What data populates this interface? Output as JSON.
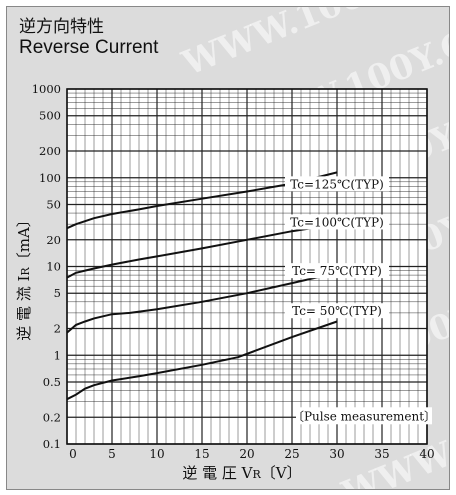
{
  "title_jp": "逆方向特性",
  "title_en": "Reverse Current",
  "watermark": "WWW.100Y.COM.TW",
  "chart_data": {
    "type": "line",
    "x_label_jp": "逆 電 圧",
    "x_label_sym": "V",
    "x_label_sub": "R",
    "x_label_unit": "〔V〕",
    "y_label_jp": "逆 電 流",
    "y_label_sym": "I",
    "y_label_sub": "R",
    "y_label_unit": "〔mA〕",
    "xlim": [
      0,
      40
    ],
    "ylim": [
      0.1,
      1000
    ],
    "y_scale": "log",
    "grid": true,
    "x_ticks": [
      0,
      5,
      10,
      15,
      20,
      25,
      30,
      35,
      40
    ],
    "y_ticks": [
      0.1,
      0.2,
      0.5,
      1,
      2,
      5,
      10,
      20,
      50,
      100,
      200,
      500,
      1000
    ],
    "y_tick_labels": [
      "0.1",
      "0.2",
      "0.5",
      "1",
      "2",
      "5",
      "10",
      "20",
      "50",
      "100",
      "200",
      "500",
      "1000"
    ],
    "note": "〔Pulse measurement〕",
    "series": [
      {
        "name": "Tc=125℃(TYP)",
        "x": [
          0,
          1,
          3,
          5,
          8,
          10,
          15,
          20,
          25,
          30
        ],
        "y": [
          27,
          30,
          35,
          39,
          44,
          48,
          58,
          70,
          86,
          115
        ]
      },
      {
        "name": "Tc=100℃(TYP)",
        "x": [
          0,
          1,
          2,
          3,
          5,
          8,
          10,
          15,
          20,
          25,
          30
        ],
        "y": [
          7.5,
          8.5,
          9,
          9.5,
          10.5,
          12,
          13,
          16,
          20,
          25,
          30
        ]
      },
      {
        "name": "Tc= 75℃(TYP)",
        "x": [
          0,
          1,
          2,
          3,
          5,
          7,
          10,
          15,
          20,
          25,
          30
        ],
        "y": [
          1.8,
          2.2,
          2.4,
          2.6,
          2.9,
          3.0,
          3.3,
          4.0,
          5.0,
          6.5,
          8.5
        ]
      },
      {
        "name": "Tc= 50℃(TYP)",
        "x": [
          0,
          1,
          2,
          3,
          5,
          8,
          10,
          15,
          19,
          25,
          30
        ],
        "y": [
          0.32,
          0.36,
          0.42,
          0.46,
          0.52,
          0.58,
          0.63,
          0.78,
          0.95,
          1.6,
          2.4
        ]
      }
    ]
  }
}
